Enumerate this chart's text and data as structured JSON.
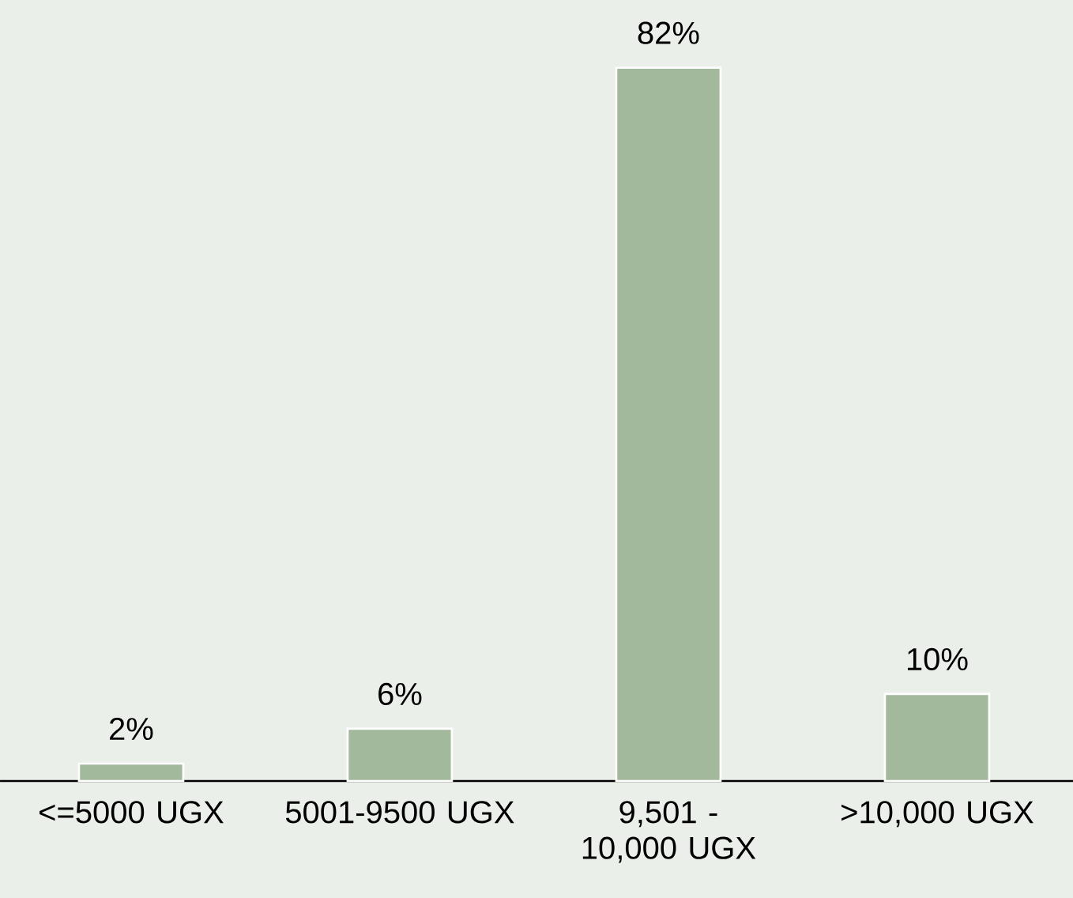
{
  "chart_data": {
    "type": "bar",
    "categories": [
      "<=5000 UGX",
      "5001-9500 UGX",
      "9,501 - 10,000 UGX",
      ">10,000 UGX"
    ],
    "values": [
      2,
      6,
      82,
      10
    ],
    "value_labels": [
      "2%",
      "6%",
      "82%",
      "10%"
    ],
    "color": "#a3b99b"
  }
}
